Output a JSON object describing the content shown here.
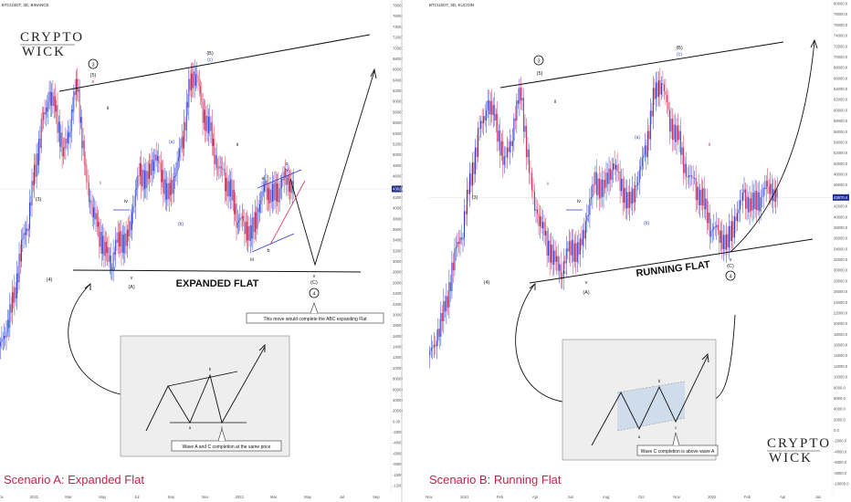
{
  "left_panel": {
    "header": "BTCUSDT, 3D, BINANCE",
    "scenario_label": "Scenario A: Expanded Flat",
    "pattern_label": "EXPANDED FLAT",
    "callout": "This move would complete the ABC expanding Flat",
    "inset_caption": "Wave A and C completion at the same price",
    "inset_labels": [
      "b",
      "a",
      "c"
    ],
    "x_ticks": [
      "Nov",
      "2021",
      "Mar",
      "May",
      "Jul",
      "Sep",
      "Nov",
      "2022",
      "Mar",
      "May",
      "Jul",
      "Sep"
    ],
    "y_ticks": [
      "78000.00",
      "76000.00",
      "74000.00",
      "72000.00",
      "70000.00",
      "68000.00",
      "66000.00",
      "64000.00",
      "62000.00",
      "60000.00",
      "58000.00",
      "56000.00",
      "54000.00",
      "52000.00",
      "50000.00",
      "48000.00",
      "46000.00",
      "44000.00",
      "42000.00",
      "40000.00",
      "38000.00",
      "36000.00",
      "34000.00",
      "32000.00",
      "30000.00",
      "28000.00",
      "26000.00",
      "24000.00",
      "22000.00",
      "20000.00",
      "18000.00",
      "16000.00",
      "14000.00",
      "12000.00",
      "10000.00",
      "8000.00",
      "6000.00",
      "4000.00",
      "2000.00",
      "0.00",
      "-2000.00",
      "-4000.00",
      "-6000.00",
      "-8000.00",
      "-10000.00",
      "-12000.00"
    ],
    "price_tag": "43621.21",
    "wave_labels": {
      "w3_circle": "3",
      "w5": "(5)",
      "w4": "(4)",
      "w3": "(3)",
      "B": "(B)",
      "c_blue": "(c)",
      "A": "(A)",
      "C": "(C)",
      "w4_circle": "4",
      "a_blue": "(a)",
      "b_blue": "(b)",
      "v": "v",
      "iv": "iv",
      "iii": "iii",
      "i": "i",
      "ii": "ii",
      "a": "a",
      "b": "b",
      "c": "c",
      "e": "e"
    }
  },
  "right_panel": {
    "header": "BTCUSDT, 3D, KUCOIN",
    "scenario_label": "Scenario B: Running Flat",
    "pattern_label": "RUNNING FLAT",
    "inset_caption": "Wave C completion is above wave A",
    "inset_labels": [
      "b",
      "a",
      "c"
    ],
    "x_ticks": [
      "Nov",
      "2021",
      "Feb",
      "Apr",
      "Jun",
      "Aug",
      "Oct",
      "Nov",
      "2022",
      "Feb",
      "Apr",
      "Jun"
    ],
    "y_ticks": [
      "80000.0",
      "78000.0",
      "76000.0",
      "74000.0",
      "72000.0",
      "70000.0",
      "68000.0",
      "66000.0",
      "64000.0",
      "62000.0",
      "60000.0",
      "58000.0",
      "56000.0",
      "54000.0",
      "52000.0",
      "50000.0",
      "48000.0",
      "46000.0",
      "44000.0",
      "42000.0",
      "40000.0",
      "38000.0",
      "36000.0",
      "34000.0",
      "32000.0",
      "30000.0",
      "28000.0",
      "26000.0",
      "24000.0",
      "22000.0",
      "20000.0",
      "18000.0",
      "16000.0",
      "14000.0",
      "12000.0",
      "10000.0",
      "8000.0",
      "6000.0",
      "4000.0",
      "2000.0",
      "0.0",
      "-2000.0",
      "-4000.0",
      "-6000.0",
      "-8000.0",
      "-10000.0"
    ],
    "price_tag": "43670.4",
    "wave_labels": {
      "w3_circle": "3",
      "w5": "(5)",
      "w4": "(4)",
      "w3": "(3)",
      "B": "(B)",
      "c_blue": "(c)",
      "A": "(A)",
      "C": "(C)",
      "w4_circle": "4",
      "a_blue": "(a)",
      "b_blue": "(b)",
      "v": "v",
      "iv": "iv",
      "iii": "iii",
      "ii": "ii",
      "i": "i"
    }
  },
  "logo": {
    "line1": "CRYPTO",
    "line2": "WICK"
  },
  "colors": {
    "up_candle": "#2a3bd1",
    "down_candle": "#d6335a",
    "wave_blue": "#3a4ec7",
    "wave_red": "#d2334f",
    "scenario": "#c0264a"
  },
  "chart_data": [
    {
      "type": "candlestick",
      "title": "BTCUSDT, 3D, BINANCE",
      "ylim": [
        -12000,
        78000
      ],
      "x": [
        "Nov",
        "2021",
        "Mar",
        "May",
        "Jul",
        "Sep",
        "Nov",
        "2022",
        "Mar",
        "May",
        "Jul",
        "Sep"
      ],
      "close_path": [
        14000,
        18000,
        24000,
        33000,
        38000,
        48000,
        56000,
        61000,
        58000,
        50000,
        56000,
        64000,
        48000,
        40000,
        36000,
        32000,
        30000,
        35000,
        33000,
        40000,
        47000,
        45000,
        50000,
        47000,
        42000,
        46000,
        52000,
        62000,
        66000,
        58000,
        55000,
        48000,
        46000,
        43000,
        38000,
        37000,
        35000,
        40000,
        44000,
        42000,
        44000,
        46000,
        43600
      ],
      "annotation": "This move would complete the ABC expanding Flat"
    },
    {
      "type": "candlestick",
      "title": "BTCUSDT, 3D, KUCOIN",
      "ylim": [
        -10000,
        80000
      ],
      "x": [
        "Nov",
        "2021",
        "Feb",
        "Apr",
        "Jun",
        "Aug",
        "Oct",
        "Nov",
        "2022",
        "Feb",
        "Apr",
        "Jun"
      ],
      "close_path": [
        14000,
        18000,
        24000,
        33000,
        38000,
        48000,
        56000,
        61000,
        58000,
        50000,
        56000,
        64000,
        48000,
        40000,
        36000,
        32000,
        30000,
        35000,
        33000,
        40000,
        47000,
        45000,
        50000,
        47000,
        42000,
        46000,
        52000,
        62000,
        66000,
        58000,
        55000,
        48000,
        46000,
        43000,
        38000,
        37000,
        35000,
        40000,
        44000,
        42000,
        44000,
        46000,
        43670
      ]
    }
  ]
}
